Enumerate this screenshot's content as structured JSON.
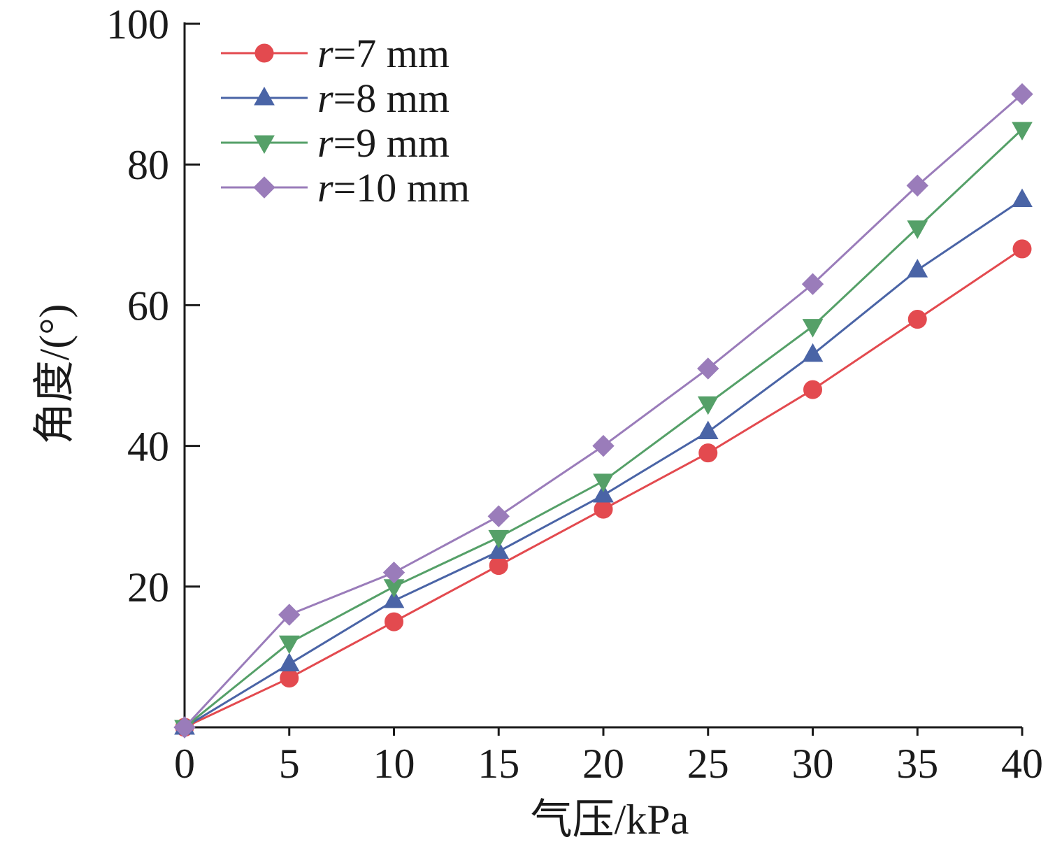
{
  "chart_data": {
    "type": "line",
    "xlabel": "气压/kPa",
    "ylabel": "角度/(°)",
    "xlim": [
      0,
      40
    ],
    "ylim": [
      0,
      100
    ],
    "x_ticks": [
      0,
      5,
      10,
      15,
      20,
      25,
      30,
      35,
      40
    ],
    "y_ticks": [
      20,
      40,
      60,
      80,
      100
    ],
    "x": [
      0,
      5,
      10,
      15,
      20,
      25,
      30,
      35,
      40
    ],
    "grid": false,
    "legend_position": "top-left",
    "series": [
      {
        "name_var": "r",
        "name_rest": "=7 mm",
        "color": "#e34a4f",
        "marker": "circle",
        "values": [
          0,
          7,
          15,
          23,
          31,
          39,
          48,
          58,
          68
        ]
      },
      {
        "name_var": "r",
        "name_rest": "=8 mm",
        "color": "#4a64a6",
        "marker": "triangle-up",
        "values": [
          0,
          9,
          18,
          25,
          33,
          42,
          53,
          65,
          75
        ]
      },
      {
        "name_var": "r",
        "name_rest": "=9 mm",
        "color": "#55a068",
        "marker": "triangle-down",
        "values": [
          0,
          12,
          20,
          27,
          35,
          46,
          57,
          71,
          85
        ]
      },
      {
        "name_var": "r",
        "name_rest": "=10 mm",
        "color": "#9a7cba",
        "marker": "diamond",
        "values": [
          0,
          16,
          22,
          30,
          40,
          51,
          63,
          77,
          90
        ]
      }
    ]
  }
}
